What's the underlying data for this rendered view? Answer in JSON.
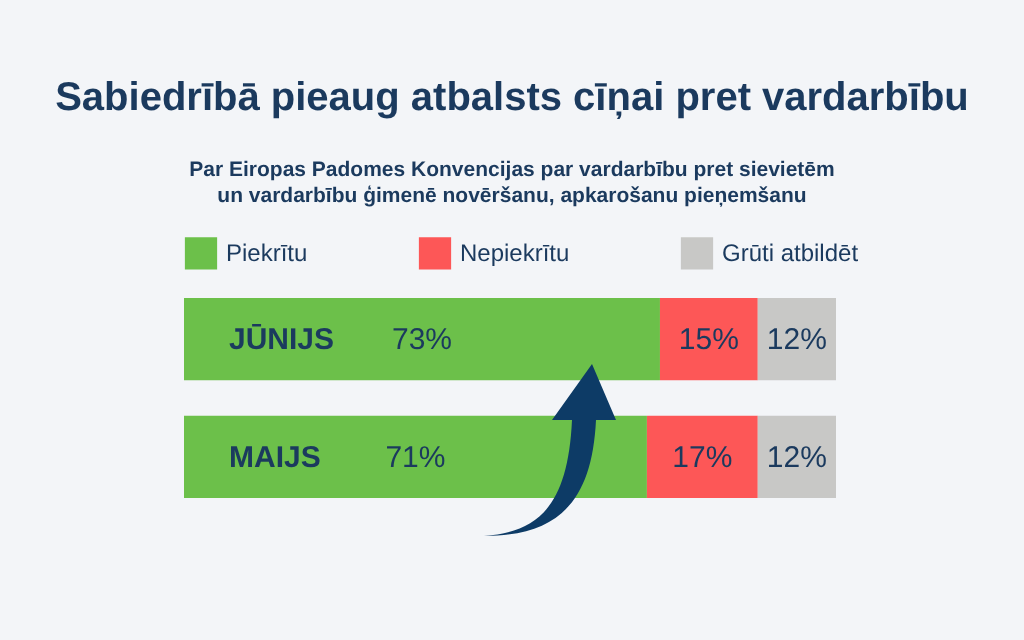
{
  "chart_data": {
    "type": "bar",
    "orientation": "horizontal",
    "stacked": true,
    "title": "Sabiedrībā pieaug atbalsts cīņai pret vardarbību",
    "subtitle": "Par Eiropas Padomes Konvencijas par vardarbību pret sievietēm un vardarbību ģimenē novēršanu, apkarošanu pieņemšanu",
    "categories": [
      "JŪNIJS",
      "MAIJS"
    ],
    "xlim": [
      0,
      100
    ],
    "legend": "top",
    "series": [
      {
        "name": "Piekrītu",
        "color": "#6cc04a",
        "values": [
          73,
          71
        ],
        "value_labels": [
          "73%",
          "71%"
        ]
      },
      {
        "name": "Nepiekrītu",
        "color": "#fd5757",
        "values": [
          15,
          17
        ],
        "value_labels": [
          "15%",
          "17%"
        ]
      },
      {
        "name": "Grūti atbildēt",
        "color": "#c8c8c6",
        "values": [
          12,
          12
        ],
        "value_labels": [
          "12%",
          "12%"
        ]
      }
    ]
  }
}
